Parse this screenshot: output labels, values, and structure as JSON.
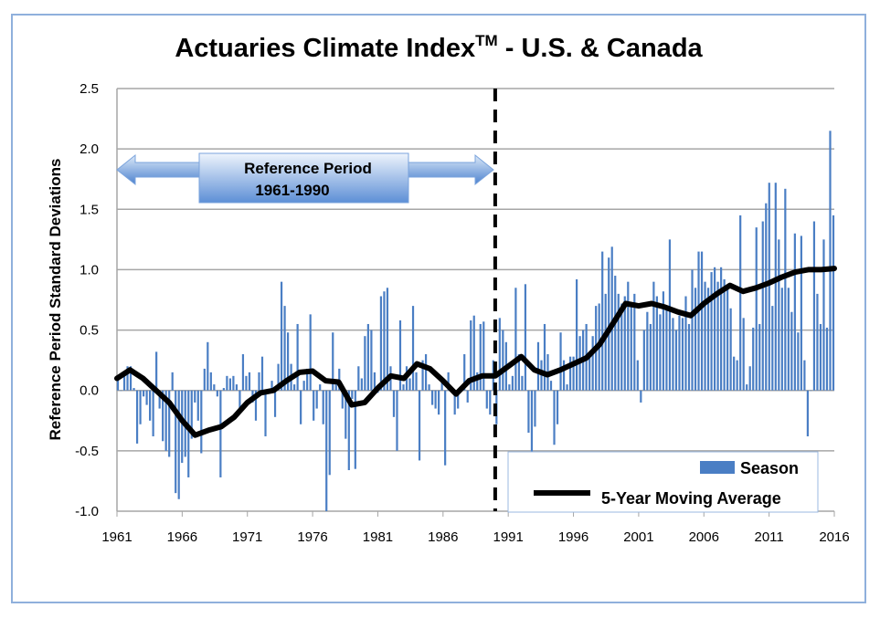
{
  "chart_data": {
    "type": "bar",
    "title": "Actuaries Climate Index",
    "title_superscript": "TM",
    "title_suffix": " - U.S. & Canada",
    "xlabel": "",
    "ylabel": "Reference Period Standard Deviations",
    "x_range": [
      1961,
      2016
    ],
    "ylim": [
      -1.0,
      2.5
    ],
    "y_ticks": [
      "2.5",
      "2.0",
      "1.5",
      "1.0",
      "0.5",
      "0.0",
      "-0.5",
      "-1.0"
    ],
    "x_ticks": [
      "1961",
      "1966",
      "1971",
      "1976",
      "1981",
      "1986",
      "1991",
      "1996",
      "2001",
      "2006",
      "2011",
      "2016"
    ],
    "grid": true,
    "legend_position": "bottom-right",
    "colors": {
      "bars": "#4a7ec4",
      "moving_average": "#000000",
      "frame": "#8fb0dc",
      "reference_arrow": "#5b8fd6"
    },
    "annotation": {
      "label_line1": "Reference Period",
      "label_line2": "1961-1990",
      "start": 1961,
      "end": 1990,
      "divider_year": 1990
    },
    "series": [
      {
        "name": "Season",
        "type": "bar",
        "values": [
          0.1,
          0.0,
          0.12,
          0.2,
          0.2,
          0.02,
          -0.44,
          -0.28,
          -0.05,
          -0.12,
          -0.25,
          -0.38,
          0.32,
          -0.15,
          -0.42,
          -0.5,
          -0.55,
          0.15,
          -0.85,
          -0.9,
          -0.6,
          -0.55,
          -0.72,
          -0.4,
          -0.1,
          -0.25,
          -0.52,
          0.18,
          0.4,
          0.15,
          0.05,
          -0.05,
          -0.72,
          0.02,
          0.12,
          0.1,
          0.12,
          0.05,
          -0.18,
          0.3,
          0.12,
          0.15,
          -0.1,
          -0.25,
          0.15,
          0.28,
          -0.38,
          0.0,
          0.08,
          -0.22,
          0.22,
          0.9,
          0.7,
          0.48,
          0.22,
          0.05,
          0.55,
          -0.28,
          0.08,
          0.18,
          0.63,
          -0.25,
          -0.15,
          0.05,
          -0.28,
          -1.0,
          -0.7,
          0.48,
          0.05,
          0.18,
          -0.15,
          -0.4,
          -0.66,
          -0.07,
          -0.65,
          0.2,
          0.1,
          0.45,
          0.55,
          0.5,
          0.15,
          -0.02,
          0.78,
          0.82,
          0.85,
          0.2,
          -0.22,
          -0.5,
          0.58,
          0.05,
          0.2,
          0.1,
          0.7,
          0.15,
          -0.58,
          0.25,
          0.3,
          0.05,
          -0.12,
          -0.15,
          -0.2,
          0.1,
          -0.62,
          0.15,
          0.0,
          -0.2,
          -0.15,
          0.02,
          0.3,
          -0.1,
          0.58,
          0.62,
          0.15,
          0.55,
          0.57,
          -0.15,
          -0.2,
          0.25,
          -0.28,
          0.6,
          0.5,
          0.4,
          0.05,
          0.12,
          0.85,
          0.3,
          0.12,
          0.88,
          -0.35,
          -0.58,
          -0.3,
          0.4,
          0.25,
          0.55,
          0.3,
          0.08,
          -0.45,
          -0.28,
          0.48,
          0.25,
          0.05,
          0.28,
          0.28,
          0.92,
          0.45,
          0.5,
          0.55,
          0.28,
          0.45,
          0.7,
          0.72,
          1.15,
          0.8,
          1.1,
          1.19,
          0.95,
          0.8,
          0.72,
          0.78,
          0.9,
          0.72,
          0.8,
          0.25,
          -0.1,
          0.5,
          0.65,
          0.55,
          0.9,
          0.78,
          0.63,
          0.82,
          0.7,
          1.25,
          0.6,
          0.5,
          0.62,
          0.6,
          0.78,
          0.55,
          1.0,
          0.85,
          1.15,
          1.15,
          0.9,
          0.85,
          0.98,
          1.02,
          0.9,
          1.02,
          0.92,
          0.85,
          0.68,
          0.28,
          0.25,
          1.45,
          0.6,
          0.05,
          0.2,
          0.52,
          1.35,
          0.55,
          1.4,
          1.55,
          1.72,
          0.7,
          1.72,
          1.25,
          0.85,
          1.67,
          0.85,
          0.65,
          1.3,
          0.48,
          1.28,
          0.25,
          -0.38,
          0.0,
          1.4,
          0.8,
          0.55,
          1.25,
          0.52,
          2.15,
          1.45
        ]
      },
      {
        "name": "5-Year Moving Average",
        "type": "line",
        "x": [
          1961,
          1962,
          1963,
          1964,
          1965,
          1966,
          1967,
          1968,
          1969,
          1970,
          1971,
          1972,
          1973,
          1974,
          1975,
          1976,
          1977,
          1978,
          1979,
          1980,
          1981,
          1982,
          1983,
          1984,
          1985,
          1986,
          1987,
          1988,
          1989,
          1990,
          1991,
          1992,
          1993,
          1994,
          1995,
          1996,
          1997,
          1998,
          1999,
          2000,
          2001,
          2002,
          2003,
          2004,
          2005,
          2006,
          2007,
          2008,
          2009,
          2010,
          2011,
          2012,
          2013,
          2014,
          2015,
          2016
        ],
        "values": [
          0.1,
          0.17,
          0.1,
          0.0,
          -0.1,
          -0.25,
          -0.37,
          -0.33,
          -0.3,
          -0.22,
          -0.1,
          -0.02,
          0.0,
          0.08,
          0.15,
          0.16,
          0.08,
          0.07,
          -0.12,
          -0.1,
          0.02,
          0.12,
          0.1,
          0.22,
          0.18,
          0.08,
          -0.03,
          0.08,
          0.12,
          0.12,
          0.2,
          0.28,
          0.17,
          0.13,
          0.17,
          0.22,
          0.27,
          0.38,
          0.55,
          0.72,
          0.7,
          0.72,
          0.69,
          0.65,
          0.62,
          0.72,
          0.8,
          0.87,
          0.82,
          0.85,
          0.89,
          0.94,
          0.98,
          1.0,
          1.0,
          1.01
        ]
      }
    ]
  }
}
